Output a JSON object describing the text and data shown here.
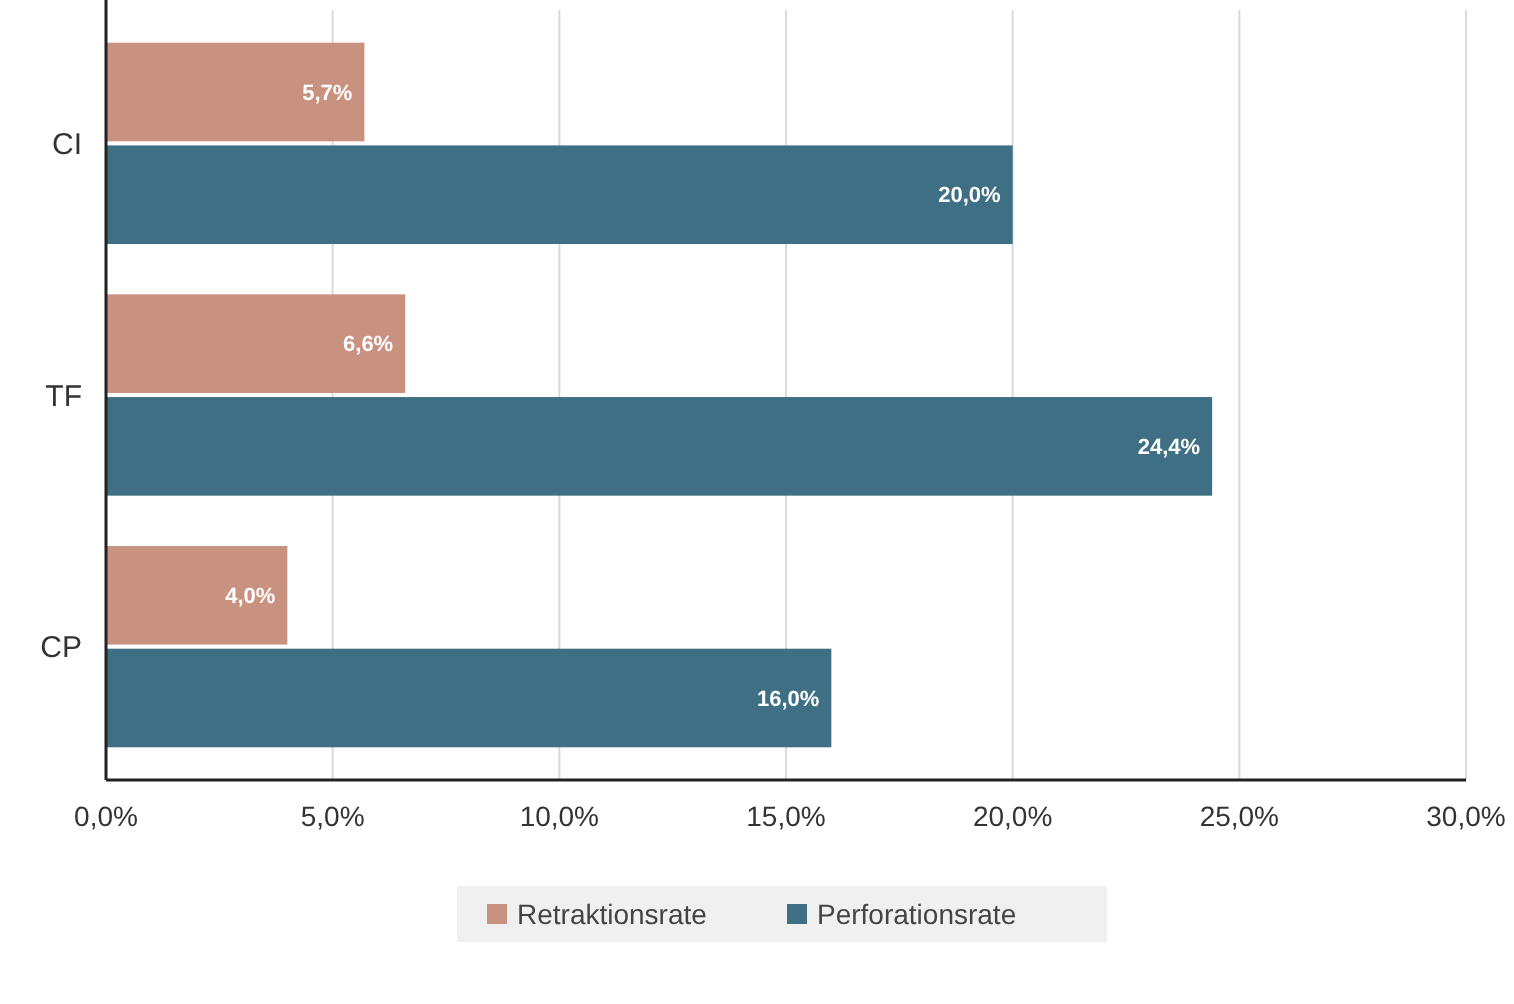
{
  "chart_data": {
    "type": "bar",
    "orientation": "horizontal",
    "categories": [
      "CI",
      "TF",
      "CP"
    ],
    "series": [
      {
        "name": "Retraktionsrate",
        "color": "#c9917f",
        "values": [
          5.7,
          6.6,
          4.0
        ],
        "value_labels": [
          "5,7%",
          "6,6%",
          "4,0%"
        ]
      },
      {
        "name": "Perforationsrate",
        "color": "#3e6f85",
        "values": [
          20.0,
          24.4,
          16.0
        ],
        "value_labels": [
          "20,0%",
          "24,4%",
          "16,0%"
        ]
      }
    ],
    "xlim": [
      0,
      30
    ],
    "xticks": [
      {
        "value": 0,
        "label": "0,0%"
      },
      {
        "value": 5,
        "label": "5,0%"
      },
      {
        "value": 10,
        "label": "10,0%"
      },
      {
        "value": 15,
        "label": "15,0%"
      },
      {
        "value": 20,
        "label": "20,0%"
      },
      {
        "value": 25,
        "label": "25,0%"
      },
      {
        "value": 30,
        "label": "30,0%"
      }
    ],
    "grid": "x",
    "legend": "bottom"
  }
}
